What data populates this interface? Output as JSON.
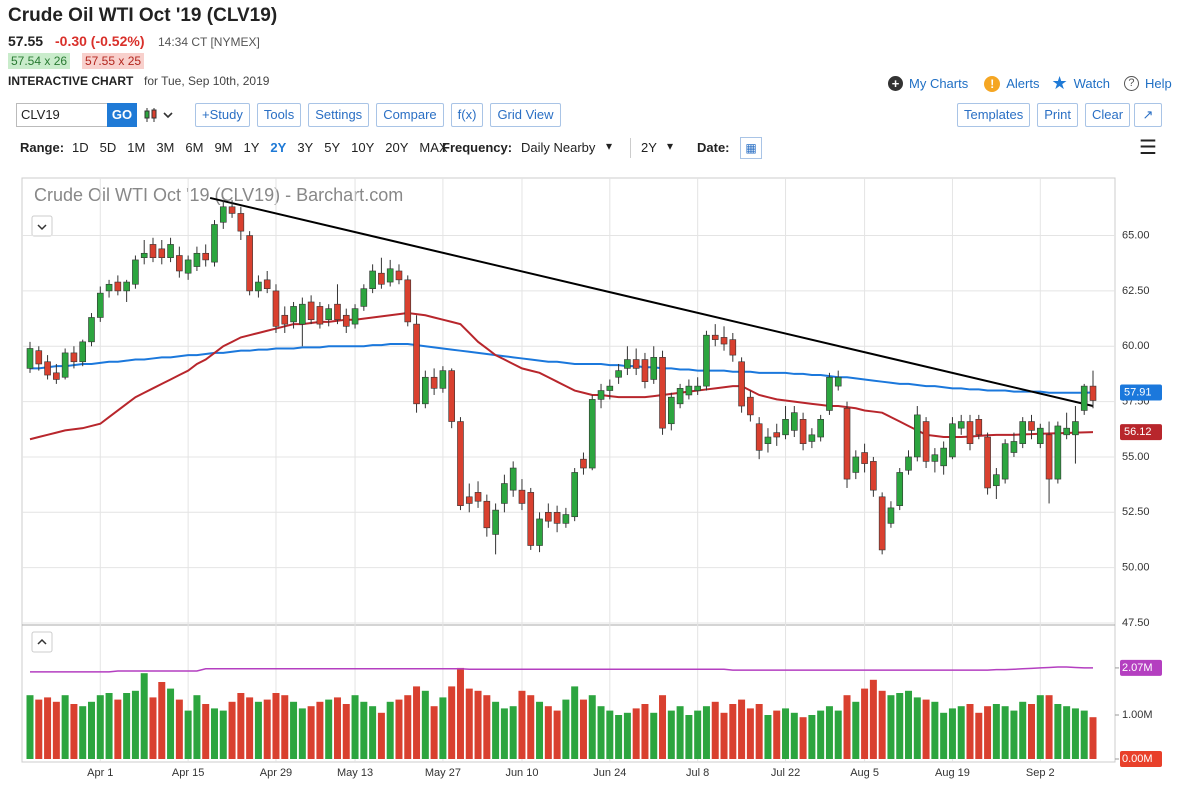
{
  "header": {
    "title": "Crude Oil WTI Oct '19 (CLV19)",
    "last": "57.55",
    "change": "-0.30 (-0.52%)",
    "time": "14:34 CT [NYMEX]",
    "bid": "57.54 x 26",
    "ask": "57.55 x 25",
    "chart_label": "INTERACTIVE CHART",
    "date": "for Tue, Sep 10th, 2019"
  },
  "nav": [
    "My Charts",
    "Alerts",
    "Watch",
    "Help"
  ],
  "toolbar": {
    "symbol": "CLV19",
    "go": "GO",
    "buttons": [
      "+Study",
      "Tools",
      "Settings",
      "Compare",
      "f(x)",
      "Grid View"
    ],
    "right_buttons": [
      "Templates",
      "Print",
      "Clear"
    ]
  },
  "range_bar": {
    "label": "Range:",
    "ranges": [
      "1D",
      "5D",
      "1M",
      "3M",
      "6M",
      "9M",
      "1Y",
      "2Y",
      "3Y",
      "5Y",
      "10Y",
      "20Y",
      "MAX"
    ],
    "selected": "2Y",
    "frequency_label": "Frequency:",
    "frequency": "Daily Nearby",
    "period": "2Y",
    "date_label": "Date:"
  },
  "chart_data": {
    "type": "candlestick",
    "title": "Crude Oil WTI Oct '19 (CLV19) - Barchart.com",
    "categories": [
      null,
      null,
      null,
      null,
      null,
      null,
      null,
      null,
      "Apr 1",
      null,
      null,
      null,
      null,
      null,
      null,
      null,
      null,
      null,
      "Apr 15",
      null,
      null,
      null,
      null,
      null,
      null,
      null,
      null,
      null,
      "Apr 29",
      null,
      null,
      null,
      null,
      null,
      null,
      null,
      null,
      "May 13",
      null,
      null,
      null,
      null,
      null,
      null,
      null,
      null,
      null,
      "May 27",
      null,
      null,
      null,
      null,
      null,
      null,
      null,
      null,
      "Jun 10",
      null,
      null,
      null,
      null,
      null,
      null,
      null,
      null,
      null,
      "Jun 24",
      null,
      null,
      null,
      null,
      null,
      null,
      null,
      null,
      null,
      "Jul 8",
      null,
      null,
      null,
      null,
      null,
      null,
      null,
      null,
      null,
      "Jul 22",
      null,
      null,
      null,
      null,
      null,
      null,
      null,
      null,
      "Aug 5",
      null,
      null,
      null,
      null,
      null,
      null,
      null,
      null,
      null,
      "Aug 19",
      null,
      null,
      null,
      null,
      null,
      null,
      null,
      null,
      null,
      "Sep 2",
      null,
      null,
      null,
      null,
      null,
      null
    ],
    "ohlc": [
      [
        59.0,
        60.2,
        58.8,
        59.9
      ],
      [
        59.8,
        60.0,
        58.9,
        59.2
      ],
      [
        59.3,
        59.6,
        58.5,
        58.7
      ],
      [
        58.8,
        59.2,
        58.3,
        58.5
      ],
      [
        58.6,
        59.9,
        58.5,
        59.7
      ],
      [
        59.7,
        60.0,
        59.0,
        59.3
      ],
      [
        59.3,
        60.3,
        59.1,
        60.2
      ],
      [
        60.2,
        61.5,
        60.0,
        61.3
      ],
      [
        61.3,
        62.7,
        61.1,
        62.4
      ],
      [
        62.5,
        63.0,
        62.2,
        62.8
      ],
      [
        62.9,
        63.2,
        62.3,
        62.5
      ],
      [
        62.5,
        63.0,
        62.0,
        62.9
      ],
      [
        62.8,
        64.1,
        62.6,
        63.9
      ],
      [
        64.0,
        64.8,
        63.7,
        64.2
      ],
      [
        64.6,
        64.9,
        63.8,
        64.0
      ],
      [
        64.4,
        64.8,
        63.7,
        64.0
      ],
      [
        64.0,
        64.9,
        63.8,
        64.6
      ],
      [
        64.1,
        64.5,
        63.1,
        63.4
      ],
      [
        63.3,
        64.1,
        63.0,
        63.9
      ],
      [
        63.6,
        64.5,
        63.4,
        64.2
      ],
      [
        64.2,
        64.6,
        63.6,
        63.9
      ],
      [
        63.8,
        65.7,
        63.6,
        65.5
      ],
      [
        65.6,
        66.6,
        65.3,
        66.3
      ],
      [
        66.3,
        66.6,
        65.8,
        66.0
      ],
      [
        66.0,
        66.3,
        64.8,
        65.2
      ],
      [
        65.0,
        65.2,
        62.3,
        62.5
      ],
      [
        62.5,
        63.2,
        62.2,
        62.9
      ],
      [
        63.0,
        63.4,
        62.4,
        62.6
      ],
      [
        62.5,
        62.8,
        60.6,
        60.9
      ],
      [
        61.4,
        61.8,
        60.6,
        61.0
      ],
      [
        61.1,
        62.0,
        60.8,
        61.8
      ],
      [
        61.0,
        62.2,
        60.0,
        61.9
      ],
      [
        62.0,
        62.3,
        61.0,
        61.2
      ],
      [
        61.8,
        62.0,
        60.8,
        61.0
      ],
      [
        61.2,
        61.9,
        60.9,
        61.7
      ],
      [
        61.9,
        62.8,
        61.0,
        61.2
      ],
      [
        61.4,
        61.7,
        60.6,
        60.9
      ],
      [
        61.0,
        61.9,
        60.8,
        61.7
      ],
      [
        61.8,
        62.8,
        61.6,
        62.6
      ],
      [
        62.6,
        63.7,
        62.4,
        63.4
      ],
      [
        63.3,
        64.0,
        62.6,
        62.8
      ],
      [
        62.9,
        63.9,
        62.7,
        63.5
      ],
      [
        63.4,
        63.7,
        62.8,
        63.0
      ],
      [
        63.0,
        63.2,
        60.9,
        61.1
      ],
      [
        61.0,
        61.4,
        57.0,
        57.4
      ],
      [
        57.4,
        58.9,
        57.2,
        58.6
      ],
      [
        58.6,
        59.0,
        57.8,
        58.1
      ],
      [
        58.1,
        59.1,
        57.9,
        58.9
      ],
      [
        58.9,
        59.0,
        56.3,
        56.6
      ],
      [
        56.6,
        56.8,
        52.6,
        52.8
      ],
      [
        53.2,
        53.8,
        52.5,
        52.9
      ],
      [
        53.4,
        53.9,
        52.7,
        53.0
      ],
      [
        53.0,
        53.3,
        51.4,
        51.8
      ],
      [
        51.5,
        52.9,
        50.6,
        52.6
      ],
      [
        52.9,
        54.2,
        52.5,
        53.8
      ],
      [
        53.5,
        54.8,
        53.2,
        54.5
      ],
      [
        53.5,
        54.0,
        52.6,
        52.9
      ],
      [
        53.4,
        53.6,
        50.8,
        51.0
      ],
      [
        51.0,
        52.5,
        50.7,
        52.2
      ],
      [
        52.5,
        52.9,
        51.8,
        52.1
      ],
      [
        52.5,
        52.8,
        51.6,
        52.0
      ],
      [
        52.0,
        52.7,
        51.8,
        52.4
      ],
      [
        52.3,
        54.5,
        52.1,
        54.3
      ],
      [
        54.9,
        55.2,
        54.2,
        54.5
      ],
      [
        54.5,
        57.8,
        54.4,
        57.6
      ],
      [
        57.6,
        58.3,
        57.2,
        58.0
      ],
      [
        58.0,
        58.5,
        57.6,
        58.2
      ],
      [
        58.6,
        59.2,
        58.3,
        58.9
      ],
      [
        59.0,
        60.0,
        58.7,
        59.4
      ],
      [
        59.4,
        59.9,
        58.7,
        59.0
      ],
      [
        59.4,
        59.7,
        58.1,
        58.4
      ],
      [
        58.5,
        60.0,
        58.3,
        59.5
      ],
      [
        59.5,
        59.8,
        56.0,
        56.3
      ],
      [
        56.5,
        57.9,
        56.2,
        57.7
      ],
      [
        57.4,
        58.3,
        57.2,
        58.1
      ],
      [
        57.8,
        58.5,
        57.6,
        58.2
      ],
      [
        58.0,
        58.6,
        57.8,
        58.2
      ],
      [
        58.2,
        60.7,
        58.0,
        60.5
      ],
      [
        60.5,
        61.0,
        60.0,
        60.3
      ],
      [
        60.4,
        60.9,
        59.8,
        60.1
      ],
      [
        60.3,
        60.6,
        59.3,
        59.6
      ],
      [
        59.3,
        59.5,
        57.0,
        57.3
      ],
      [
        57.7,
        58.0,
        56.6,
        56.9
      ],
      [
        56.5,
        56.8,
        54.9,
        55.3
      ],
      [
        55.6,
        56.3,
        55.2,
        55.9
      ],
      [
        56.1,
        56.5,
        55.5,
        55.9
      ],
      [
        56.0,
        57.3,
        55.8,
        56.7
      ],
      [
        56.2,
        57.3,
        55.9,
        57.0
      ],
      [
        56.7,
        57.0,
        55.3,
        55.6
      ],
      [
        55.7,
        56.3,
        55.4,
        56.0
      ],
      [
        55.9,
        56.9,
        55.7,
        56.7
      ],
      [
        57.1,
        58.8,
        56.9,
        58.6
      ],
      [
        58.2,
        58.9,
        58.0,
        58.6
      ],
      [
        57.2,
        57.5,
        53.6,
        54.0
      ],
      [
        54.3,
        55.3,
        54.0,
        55.0
      ],
      [
        55.2,
        55.6,
        54.3,
        54.7
      ],
      [
        54.8,
        55.0,
        53.2,
        53.5
      ],
      [
        53.2,
        53.4,
        50.6,
        50.8
      ],
      [
        52.0,
        53.0,
        51.8,
        52.7
      ],
      [
        52.8,
        54.5,
        52.6,
        54.3
      ],
      [
        54.4,
        55.3,
        54.2,
        55.0
      ],
      [
        55.0,
        57.3,
        54.8,
        56.9
      ],
      [
        56.6,
        56.8,
        54.5,
        54.8
      ],
      [
        54.8,
        55.4,
        54.3,
        55.1
      ],
      [
        54.6,
        55.7,
        54.2,
        55.4
      ],
      [
        55.0,
        56.8,
        54.9,
        56.5
      ],
      [
        56.3,
        56.9,
        56.0,
        56.6
      ],
      [
        56.6,
        56.9,
        55.3,
        55.6
      ],
      [
        56.7,
        56.9,
        55.8,
        56.0
      ],
      [
        55.9,
        56.1,
        53.3,
        53.6
      ],
      [
        53.7,
        54.5,
        53.1,
        54.2
      ],
      [
        54.0,
        55.8,
        53.8,
        55.6
      ],
      [
        55.2,
        56.1,
        55.0,
        55.7
      ],
      [
        55.6,
        56.8,
        55.4,
        56.6
      ],
      [
        56.6,
        56.9,
        55.8,
        56.2
      ],
      [
        55.6,
        56.5,
        55.4,
        56.3
      ],
      [
        56.0,
        56.6,
        52.9,
        54.0
      ],
      [
        54.0,
        56.6,
        53.8,
        56.4
      ],
      [
        56.0,
        57.0,
        55.8,
        56.3
      ],
      [
        56.0,
        57.3,
        54.7,
        56.6
      ],
      [
        57.1,
        58.3,
        56.9,
        58.2
      ],
      [
        58.2,
        58.9,
        57.2,
        57.55
      ]
    ],
    "up_color": "#2ca53f",
    "down_color": "#d9402f",
    "series": [
      {
        "color": "#1b78dc",
        "values": [
          59.0,
          59.0,
          59.05,
          59.1,
          59.1,
          59.15,
          59.2,
          59.2,
          59.25,
          59.3,
          59.3,
          59.35,
          59.4,
          59.4,
          59.45,
          59.5,
          59.5,
          59.55,
          59.6,
          59.6,
          59.65,
          59.7,
          59.7,
          59.75,
          59.8,
          59.8,
          59.85,
          59.85,
          59.9,
          59.9,
          59.9,
          59.95,
          59.95,
          59.95,
          60.0,
          60.0,
          60.0,
          60.0,
          60.0,
          60.05,
          60.05,
          60.1,
          60.1,
          60.1,
          60.05,
          60.0,
          59.95,
          59.9,
          59.85,
          59.8,
          59.75,
          59.7,
          59.65,
          59.6,
          59.55,
          59.5,
          59.45,
          59.4,
          59.35,
          59.3,
          59.3,
          59.25,
          59.2,
          59.2,
          59.2,
          59.2,
          59.15,
          59.15,
          59.1,
          59.1,
          59.05,
          59.05,
          59.0,
          59.0,
          58.95,
          58.95,
          58.9,
          58.9,
          58.9,
          58.9,
          58.85,
          58.85,
          58.85,
          58.8,
          58.8,
          58.8,
          58.8,
          58.75,
          58.75,
          58.7,
          58.7,
          58.65,
          58.6,
          58.6,
          58.55,
          58.5,
          58.45,
          58.4,
          58.35,
          58.3,
          58.3,
          58.25,
          58.2,
          58.2,
          58.15,
          58.1,
          58.1,
          58.05,
          58.05,
          58.0,
          58.0,
          58.0,
          57.95,
          57.95,
          57.95,
          57.95,
          57.9,
          57.9,
          57.9,
          57.9,
          57.9,
          57.91
        ]
      },
      {
        "color": "#b8262c",
        "values": [
          55.8,
          55.9,
          56.0,
          56.1,
          56.2,
          56.25,
          56.3,
          56.4,
          56.5,
          56.8,
          57.1,
          57.4,
          57.7,
          57.9,
          58.1,
          58.3,
          58.5,
          58.7,
          58.9,
          59.2,
          59.4,
          59.7,
          60.0,
          60.2,
          60.4,
          60.5,
          60.6,
          60.7,
          60.8,
          60.9,
          61.0,
          61.0,
          61.05,
          61.1,
          61.1,
          61.15,
          61.2,
          61.2,
          61.25,
          61.3,
          61.35,
          61.4,
          61.45,
          61.5,
          61.45,
          61.4,
          61.3,
          61.2,
          61.1,
          61.0,
          60.6,
          60.2,
          59.9,
          59.6,
          59.4,
          59.2,
          59.0,
          58.9,
          58.8,
          58.6,
          58.4,
          58.2,
          58.0,
          57.9,
          57.8,
          57.8,
          57.75,
          57.7,
          57.7,
          57.7,
          57.7,
          57.75,
          57.8,
          57.85,
          57.9,
          57.95,
          58.0,
          58.05,
          58.1,
          58.15,
          58.2,
          58.2,
          58.0,
          57.8,
          57.7,
          57.6,
          57.55,
          57.5,
          57.45,
          57.4,
          57.35,
          57.3,
          57.3,
          57.25,
          57.2,
          57.1,
          57.05,
          57.0,
          56.8,
          56.6,
          56.4,
          56.2,
          56.0,
          55.95,
          55.9,
          55.9,
          55.9,
          55.92,
          55.95,
          55.98,
          56.0,
          56.0,
          56.0,
          56.02,
          56.03,
          56.05,
          56.06,
          56.07,
          56.08,
          56.1,
          56.11,
          56.12
        ]
      }
    ],
    "trendline": {
      "color": "#000000",
      "values": [
        66.7,
        57.3
      ]
    },
    "ylim": [
      47.5,
      67.6
    ],
    "yticks": [
      {
        "value": 47.5,
        "label": "47.50"
      },
      {
        "value": 50,
        "label": "50.00"
      },
      {
        "value": 52.5,
        "label": "52.50"
      },
      {
        "value": 55,
        "label": "55.00"
      },
      {
        "value": 57.5,
        "label": "57.50"
      },
      {
        "value": 60,
        "label": "60.00"
      },
      {
        "value": 62.5,
        "label": "62.50"
      },
      {
        "value": 65,
        "label": "65.00"
      }
    ],
    "volume": [
      1.45,
      1.35,
      1.4,
      1.3,
      1.45,
      1.25,
      1.2,
      1.3,
      1.45,
      1.5,
      1.35,
      1.5,
      1.55,
      1.95,
      1.4,
      1.75,
      1.6,
      1.35,
      1.1,
      1.45,
      1.25,
      1.15,
      1.1,
      1.3,
      1.5,
      1.4,
      1.3,
      1.35,
      1.5,
      1.45,
      1.3,
      1.15,
      1.2,
      1.3,
      1.35,
      1.4,
      1.25,
      1.45,
      1.3,
      1.2,
      1.05,
      1.3,
      1.35,
      1.45,
      1.65,
      1.55,
      1.2,
      1.4,
      1.65,
      2.07,
      1.6,
      1.55,
      1.45,
      1.3,
      1.15,
      1.2,
      1.55,
      1.45,
      1.3,
      1.2,
      1.1,
      1.35,
      1.65,
      1.35,
      1.45,
      1.2,
      1.1,
      1.0,
      1.05,
      1.15,
      1.25,
      1.05,
      1.45,
      1.1,
      1.2,
      1.0,
      1.1,
      1.2,
      1.3,
      1.05,
      1.25,
      1.35,
      1.15,
      1.25,
      1.0,
      1.1,
      1.15,
      1.05,
      0.95,
      1.0,
      1.1,
      1.2,
      1.1,
      1.45,
      1.3,
      1.6,
      1.8,
      1.55,
      1.45,
      1.5,
      1.55,
      1.4,
      1.35,
      1.3,
      1.05,
      1.15,
      1.2,
      1.25,
      1.05,
      1.2,
      1.25,
      1.2,
      1.1,
      1.3,
      1.25,
      1.45,
      1.45,
      1.25,
      1.2,
      1.15,
      1.1,
      0.95
    ],
    "volume_avg": {
      "color": "#b43fc0",
      "values": [
        1.98,
        1.98,
        1.98,
        1.98,
        1.98,
        1.98,
        1.98,
        1.98,
        1.98,
        1.98,
        2.0,
        2.0,
        2.0,
        2.0,
        2.0,
        2.0,
        2.0,
        2.0,
        2.0,
        2.0,
        2.05,
        2.05,
        2.05,
        2.05,
        2.05,
        2.05,
        2.05,
        2.05,
        2.05,
        2.05,
        2.05,
        2.05,
        2.05,
        2.05,
        2.05,
        2.05,
        2.05,
        2.05,
        2.05,
        2.05,
        2.05,
        2.05,
        2.05,
        2.05,
        2.05,
        2.05,
        2.05,
        2.05,
        2.05,
        2.05,
        2.04,
        2.04,
        2.04,
        2.04,
        2.04,
        2.04,
        2.04,
        2.04,
        2.04,
        2.04,
        2.04,
        2.04,
        2.04,
        2.04,
        2.04,
        2.04,
        2.04,
        2.04,
        2.04,
        2.04,
        2.04,
        2.04,
        2.04,
        2.04,
        2.04,
        2.04,
        2.04,
        2.04,
        2.04,
        2.04,
        2.02,
        2.02,
        2.02,
        2.02,
        2.02,
        2.02,
        2.02,
        2.02,
        2.02,
        2.02,
        2.02,
        2.02,
        2.02,
        2.02,
        2.02,
        2.02,
        2.02,
        2.02,
        2.02,
        2.02,
        2.02,
        2.02,
        2.02,
        2.02,
        2.02,
        2.02,
        2.02,
        2.02,
        2.02,
        2.02,
        2.03,
        2.03,
        2.04,
        2.05,
        2.06,
        2.07,
        2.08,
        2.09,
        2.09,
        2.08,
        2.07,
        2.07
      ]
    },
    "vlim": [
      0,
      3
    ],
    "vticks": [
      {
        "value": 0,
        "label": "0.00M",
        "color": "#e8402a"
      },
      {
        "value": 1,
        "label": "1.00M"
      },
      {
        "value": 2.07,
        "label": "2.07M",
        "color": "#b43fc0"
      }
    ],
    "grid": true
  }
}
